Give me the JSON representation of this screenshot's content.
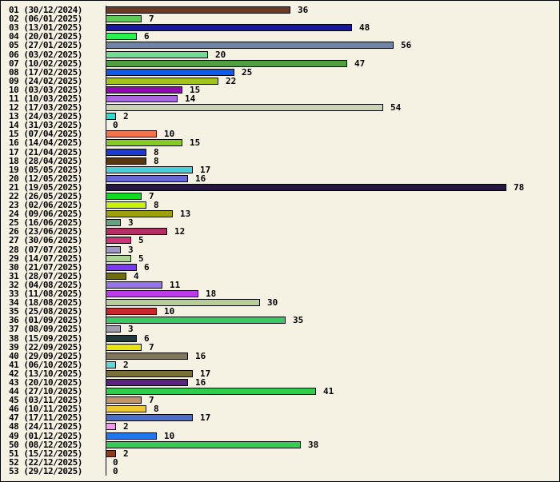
{
  "style": {
    "background": "#f5f2e4",
    "border_color": "#000000",
    "text_color": "#000000",
    "bar_border_color": "#000000"
  },
  "chart_data": {
    "type": "bar",
    "orientation": "horizontal",
    "title": "",
    "xlabel": "",
    "ylabel": "",
    "xlim": [
      0,
      78
    ],
    "grid": false,
    "legend": false,
    "categories": [
      "01 (30/12/2024)",
      "02 (06/01/2025)",
      "03 (13/01/2025)",
      "04 (20/01/2025)",
      "05 (27/01/2025)",
      "06 (03/02/2025)",
      "07 (10/02/2025)",
      "08 (17/02/2025)",
      "09 (24/02/2025)",
      "10 (03/03/2025)",
      "11 (10/03/2025)",
      "12 (17/03/2025)",
      "13 (24/03/2025)",
      "14 (31/03/2025)",
      "15 (07/04/2025)",
      "16 (14/04/2025)",
      "17 (21/04/2025)",
      "18 (28/04/2025)",
      "19 (05/05/2025)",
      "20 (12/05/2025)",
      "21 (19/05/2025)",
      "22 (26/05/2025)",
      "23 (02/06/2025)",
      "24 (09/06/2025)",
      "25 (16/06/2025)",
      "26 (23/06/2025)",
      "27 (30/06/2025)",
      "28 (07/07/2025)",
      "29 (14/07/2025)",
      "30 (21/07/2025)",
      "31 (28/07/2025)",
      "32 (04/08/2025)",
      "33 (11/08/2025)",
      "34 (18/08/2025)",
      "35 (25/08/2025)",
      "36 (01/09/2025)",
      "37 (08/09/2025)",
      "38 (15/09/2025)",
      "39 (22/09/2025)",
      "40 (29/09/2025)",
      "41 (06/10/2025)",
      "42 (13/10/2025)",
      "43 (20/10/2025)",
      "44 (27/10/2025)",
      "45 (03/11/2025)",
      "46 (10/11/2025)",
      "47 (17/11/2025)",
      "48 (24/11/2025)",
      "49 (01/12/2025)",
      "50 (08/12/2025)",
      "51 (15/12/2025)",
      "52 (22/12/2025)",
      "53 (29/12/2025)"
    ],
    "values": [
      36,
      7,
      48,
      6,
      56,
      20,
      47,
      25,
      22,
      15,
      14,
      54,
      2,
      0,
      10,
      15,
      8,
      8,
      17,
      16,
      78,
      7,
      8,
      13,
      3,
      12,
      5,
      3,
      5,
      6,
      4,
      11,
      18,
      30,
      10,
      35,
      3,
      6,
      7,
      16,
      2,
      17,
      16,
      41,
      7,
      8,
      17,
      2,
      10,
      38,
      2,
      0,
      0
    ],
    "colors": [
      "#6e3a23",
      "#5fca58",
      "#1717a0",
      "#28f24e",
      "#6e84a8",
      "#72dc92",
      "#4f9e41",
      "#0f5ae8",
      "#a4c31d",
      "#9207b3",
      "#ab66e2",
      "#cad1b5",
      "#2fd9ce",
      "#2fd9ce",
      "#f2744d",
      "#85cb23",
      "#1c3ad0",
      "#56370f",
      "#49cfd8",
      "#6a68d9",
      "#261545",
      "#10d922",
      "#c9f207",
      "#9da20c",
      "#63a381",
      "#b22e65",
      "#d03478",
      "#a096c8",
      "#add494",
      "#7c39f2",
      "#6c6c10",
      "#9874ea",
      "#bb3ce8",
      "#b8ce98",
      "#c8262b",
      "#3bc863",
      "#9e9eae",
      "#1f3b39",
      "#e8e414",
      "#7f785a",
      "#5ad8da",
      "#787038",
      "#5c2281",
      "#30cc4c",
      "#c29468",
      "#eeca2e",
      "#4c6ecb",
      "#f099ec",
      "#2277ec",
      "#36cb52",
      "#8e3a1c",
      "#8e3a1c",
      "#8e3a1c"
    ]
  }
}
